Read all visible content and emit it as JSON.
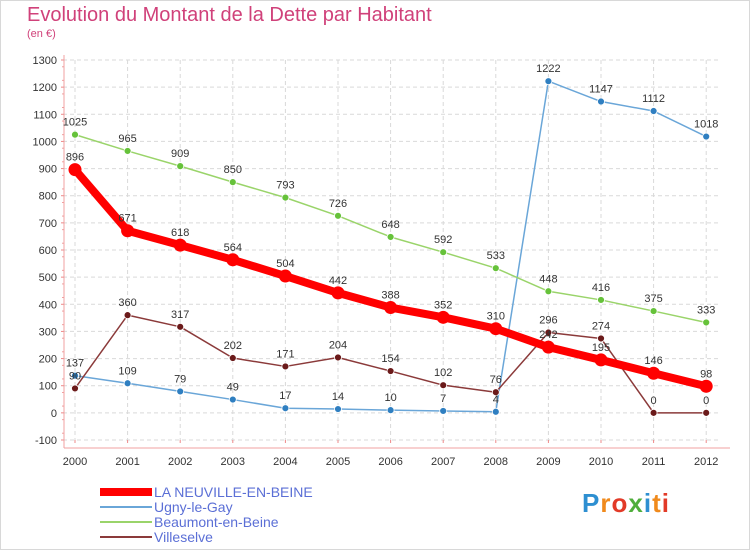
{
  "title": "Evolution du Montant de la Dette par Habitant",
  "unit": "(en €)",
  "logo": {
    "text": "Proxiti",
    "letters": [
      {
        "ch": "P",
        "color": "#2e8fd1"
      },
      {
        "ch": "r",
        "color": "#f08a1c"
      },
      {
        "ch": "o",
        "color": "#e23a28"
      },
      {
        "ch": "x",
        "color": "#4fae3c"
      },
      {
        "ch": "i",
        "color": "#2e8fd1"
      },
      {
        "ch": "t",
        "color": "#f08a1c"
      },
      {
        "ch": "i",
        "color": "#e23a28"
      }
    ]
  },
  "chart_data": {
    "type": "line",
    "x": [
      "2000",
      "2001",
      "2002",
      "2003",
      "2004",
      "2005",
      "2006",
      "2007",
      "2008",
      "2009",
      "2010",
      "2011",
      "2012"
    ],
    "ylim": [
      -100,
      1300
    ],
    "yticks": [
      "-100",
      "0",
      "100",
      "200",
      "300",
      "400",
      "500",
      "600",
      "700",
      "800",
      "900",
      "1000",
      "1100",
      "1200",
      "1300"
    ],
    "series": [
      {
        "name": "LA NEUVILLE-EN-BEINE",
        "color": "#ff0000",
        "thick": true,
        "values": [
          896,
          671,
          618,
          564,
          504,
          442,
          388,
          352,
          310,
          242,
          195,
          146,
          98
        ],
        "labels": [
          "896",
          "671",
          "618",
          "564",
          "504",
          "442",
          "388",
          "352",
          "310",
          "242",
          "195",
          "146",
          "98"
        ]
      },
      {
        "name": "Ugny-le-Gay",
        "color": "#6aa6d8",
        "point": "#2f7fc1",
        "thick": false,
        "values": [
          137,
          109,
          79,
          49,
          17,
          14,
          10,
          7,
          4,
          1222,
          1147,
          1112,
          1018
        ],
        "labels": [
          "137",
          "109",
          "79",
          "49",
          "17",
          "14",
          "10",
          "7",
          "4",
          "1222",
          "1147",
          "1112",
          "1018"
        ]
      },
      {
        "name": "Beaumont-en-Beine",
        "color": "#9ad46a",
        "point": "#66c23a",
        "thick": false,
        "values": [
          1025,
          965,
          909,
          850,
          793,
          726,
          648,
          592,
          533,
          448,
          416,
          375,
          333
        ],
        "labels": [
          "1025",
          "965",
          "909",
          "850",
          "793",
          "726",
          "648",
          "592",
          "533",
          "448",
          "416",
          "375",
          "333"
        ]
      },
      {
        "name": "Villeselve",
        "color": "#8b3a3a",
        "point": "#6b1a1a",
        "thick": false,
        "values": [
          90,
          360,
          317,
          202,
          171,
          204,
          154,
          102,
          76,
          296,
          274,
          0,
          0
        ],
        "labels": [
          "90",
          "360",
          "317",
          "202",
          "171",
          "204",
          "154",
          "102",
          "76",
          "296",
          "274",
          "0",
          "0"
        ]
      }
    ]
  }
}
